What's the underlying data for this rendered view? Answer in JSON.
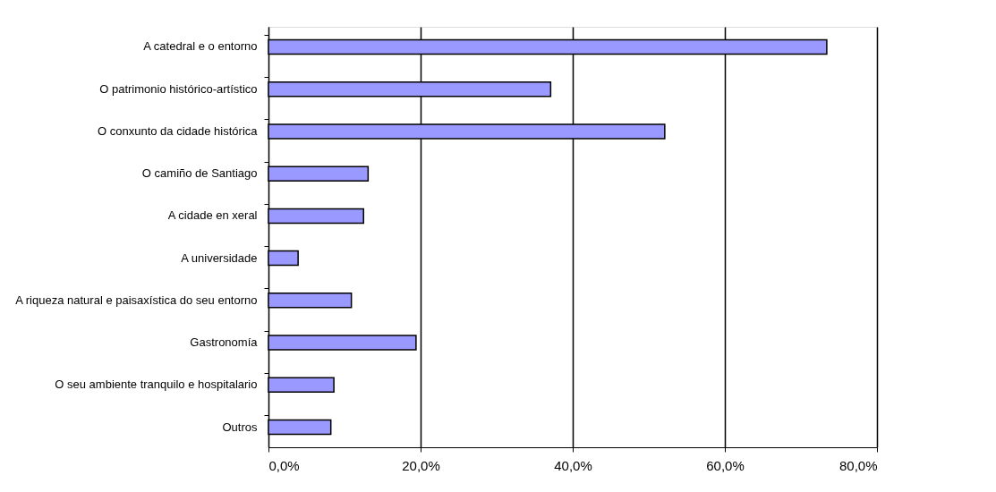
{
  "chart_data": {
    "type": "bar",
    "orientation": "horizontal",
    "categories": [
      "A catedral e o entorno",
      "O patrimonio histórico-artístico",
      "O conxunto da cidade histórica",
      "O camiño de Santiago",
      "A cidade en xeral",
      "A universidade",
      "A riqueza natural e paisaxística do seu entorno",
      "Gastronomía",
      "O seu ambiente tranquilo e hospitalario",
      "Outros"
    ],
    "values": [
      73.4,
      37.1,
      52.1,
      13.1,
      12.5,
      3.9,
      10.9,
      19.4,
      8.6,
      8.2
    ],
    "color": "#9999ff",
    "xlim": [
      0,
      80
    ],
    "xticks": [
      {
        "value": 0,
        "label": "0,0%"
      },
      {
        "value": 20,
        "label": "20,0%"
      },
      {
        "value": 40,
        "label": "40,0%"
      },
      {
        "value": 60,
        "label": "60,0%"
      },
      {
        "value": 80,
        "label": "80,0%"
      }
    ],
    "grid": "x"
  }
}
